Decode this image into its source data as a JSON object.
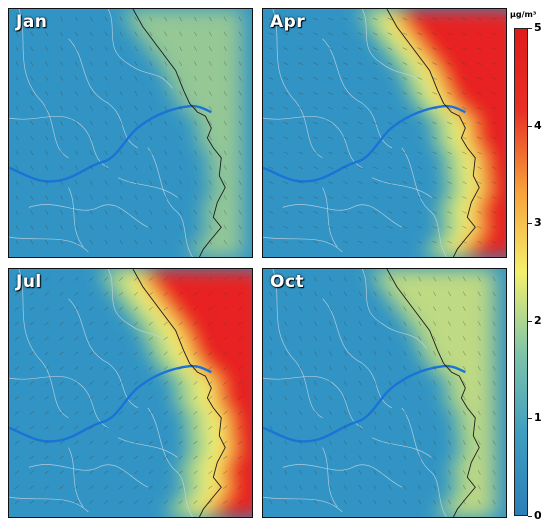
{
  "panels": [
    {
      "id": "jan",
      "label": "Jan",
      "level": 0.22
    },
    {
      "id": "apr",
      "label": "Apr",
      "level": 0.75
    },
    {
      "id": "jul",
      "label": "Jul",
      "level": 0.9
    },
    {
      "id": "oct",
      "label": "Oct",
      "level": 0.4
    }
  ],
  "colorbar": {
    "unit": "μg/m³",
    "min": 0,
    "max": 5,
    "ticks": [
      "0",
      "1",
      "2",
      "3",
      "4",
      "5"
    ],
    "colors": [
      "#2c7fb8",
      "#3e9ec0",
      "#7fc4a9",
      "#f4f06c",
      "#f7a13a",
      "#e83025",
      "#e01b1b"
    ]
  },
  "map_colors": {
    "background": "#3194c4",
    "river": "#1a73d6",
    "coast": "#1b1b1b",
    "boundary": "#c8d6e0",
    "wind_arrow": "#4b3a2a"
  }
}
